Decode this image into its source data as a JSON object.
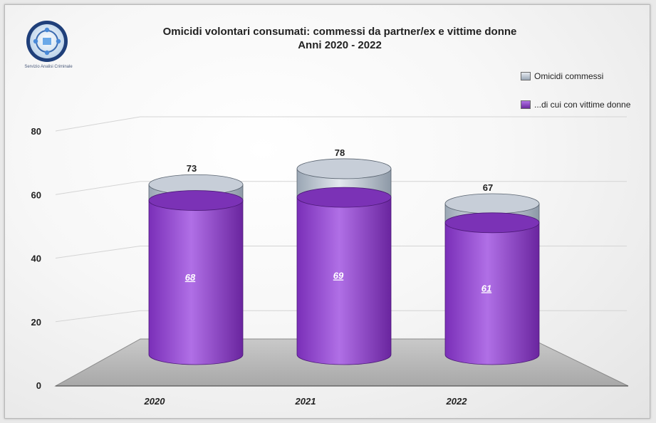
{
  "logo": {
    "caption": "Servizio Analisi Criminale",
    "icon": "analisi-criminale-logo-icon"
  },
  "chart_data": {
    "type": "bar",
    "style": "3d-cylinder",
    "title": "Omicidi volontari consumati: commessi da partner/ex e vittime donne",
    "subtitle": "Anni 2020 - 2022",
    "categories": [
      "2020",
      "2021",
      "2022"
    ],
    "series": [
      {
        "name": "Omicidi commessi",
        "values": [
          73,
          78,
          67
        ],
        "color": "#c4ccd6"
      },
      {
        "name": "...di cui con vittime donne",
        "values": [
          68,
          69,
          61
        ],
        "color": "#8e44c9"
      }
    ],
    "ylim": [
      0,
      80
    ],
    "yticks": [
      0,
      20,
      40,
      60,
      80
    ],
    "xlabel": "",
    "ylabel": "",
    "grid": true,
    "legend_position": "top-right"
  }
}
